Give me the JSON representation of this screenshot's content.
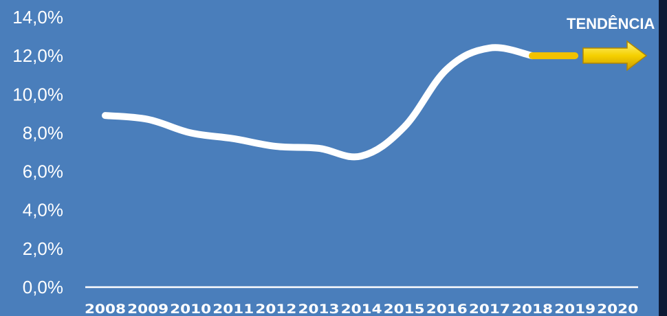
{
  "chart_data": {
    "type": "line",
    "x": [
      "2008",
      "2009",
      "2010",
      "2011",
      "2012",
      "2013",
      "2014",
      "2015",
      "2016",
      "2017",
      "2018",
      "2019",
      "2020"
    ],
    "series": [
      {
        "values": [
          8.9,
          8.7,
          8.0,
          7.7,
          7.3,
          7.2,
          6.8,
          8.3,
          11.3,
          12.4,
          12.0,
          null,
          null
        ]
      }
    ],
    "trend_segment": {
      "x": [
        "2018",
        "2019"
      ],
      "values": [
        12.0,
        12.0
      ]
    },
    "y_tick_labels": [
      "0,0%",
      "2,0%",
      "4,0%",
      "6,0%",
      "8,0%",
      "10,0%",
      "12,0%",
      "14,0%"
    ],
    "ylim": [
      0,
      14
    ],
    "grid": false,
    "annotation": "TENDÊNCIA",
    "colors": {
      "background": "#4a7ebb",
      "line": "#ffffff",
      "trend": "#f2c200",
      "arrow": "#f5d000",
      "right_bar": "#0d1a35"
    }
  }
}
